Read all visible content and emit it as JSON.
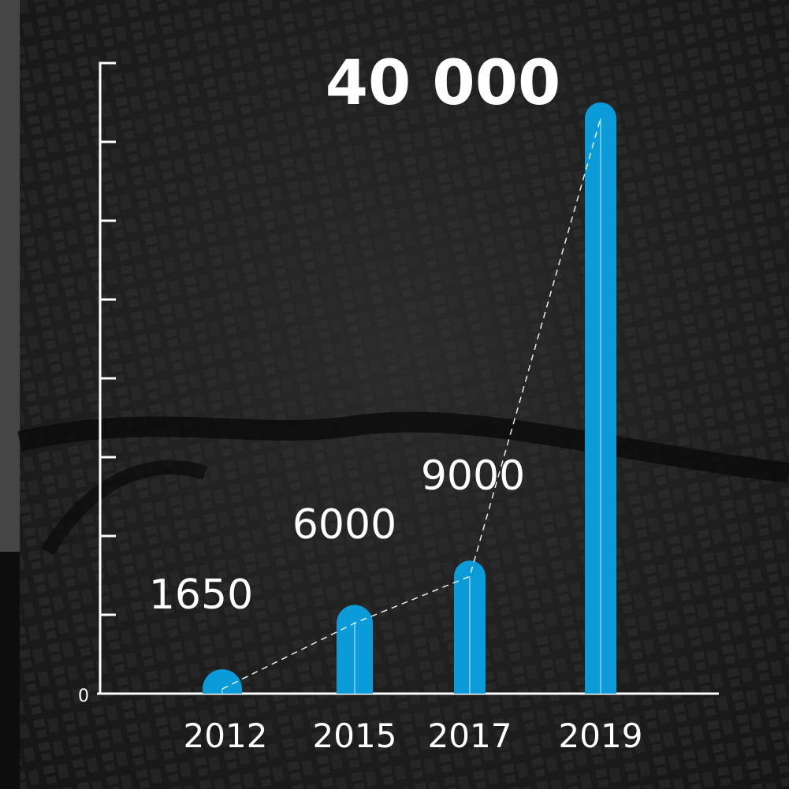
{
  "chart_data": {
    "type": "bar",
    "categories": [
      "2012",
      "2015",
      "2017",
      "2019"
    ],
    "values": [
      1650,
      6000,
      9000,
      40000
    ],
    "value_labels": [
      "1650",
      "6000",
      "9000",
      "40 000"
    ],
    "color": "#0b9bd8",
    "ylim": [
      0,
      42667
    ],
    "yticks": [
      0
    ],
    "minor_yticks": [
      5333,
      10667,
      16000,
      21333,
      26667,
      32000,
      37333,
      42667
    ]
  }
}
